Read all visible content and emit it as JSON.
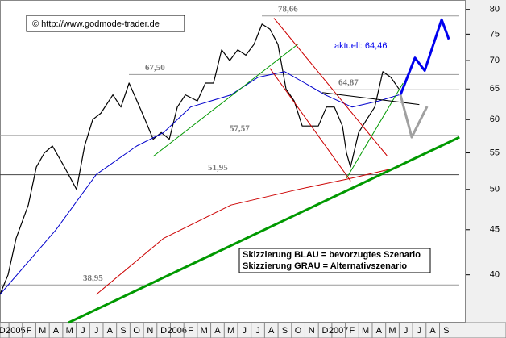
{
  "chart_data": {
    "type": "line",
    "log_scale": true,
    "source": "© http://www.godmode-trader.de",
    "annotation": "aktuell: 64,46",
    "notes": [
      "Skizzierung BLAU = bevorzugtes Szenario",
      "Skizzierung GRAU = Alternativszenario"
    ],
    "categories": [
      "D",
      "2005",
      "F",
      "M",
      "A",
      "M",
      "J",
      "J",
      "A",
      "S",
      "O",
      "N",
      "D",
      "2006",
      "F",
      "M",
      "A",
      "M",
      "J",
      "J",
      "A",
      "S",
      "O",
      "N",
      "D",
      "2007",
      "F",
      "M",
      "A",
      "M",
      "J",
      "J",
      "A",
      "S"
    ],
    "xlim": [
      -1.16,
      33.45
    ],
    "ylim": [
      35.3,
      82
    ],
    "yticks": [
      40,
      45,
      50,
      55,
      60,
      65,
      70,
      75,
      80
    ],
    "levels": [
      {
        "value": 78.66,
        "label": "78,66"
      },
      {
        "value": 67.5,
        "label": "67,50"
      },
      {
        "value": 64.87,
        "label": "64,87"
      },
      {
        "value": 57.57,
        "label": "57,57"
      },
      {
        "value": 51.95,
        "label": "51,95"
      },
      {
        "value": 38.95,
        "label": "38,95"
      }
    ],
    "series": [
      {
        "color": "#000000",
        "width": 1.2,
        "x": [
          -1.16,
          -0.56,
          0.04,
          0.94,
          1.54,
          2.14,
          2.74,
          3.63,
          4.53,
          5.13,
          5.73,
          6.33,
          7.23,
          7.83,
          8.43,
          9.02,
          9.62,
          10.22,
          10.82,
          11.42,
          12.02,
          12.62,
          13.51,
          14.11,
          14.71,
          15.31,
          15.91,
          16.51,
          17.11,
          17.71,
          18.31,
          18.9,
          19.5,
          20.1,
          20.7,
          21.3,
          21.9,
          22.5,
          23.1,
          23.69,
          24.29,
          24.59,
          24.89,
          25.49,
          26.09,
          26.69,
          27.29,
          27.89,
          28.49
        ],
        "values": [
          38,
          40,
          44,
          48,
          53,
          55,
          56,
          53,
          50,
          56,
          60,
          61,
          64,
          62,
          66,
          63,
          60,
          57,
          58,
          57,
          62,
          64,
          63,
          66,
          66,
          72,
          70,
          72,
          71,
          73,
          77,
          76,
          73,
          65,
          63,
          59,
          59,
          59,
          62,
          62,
          59,
          55,
          53,
          58,
          60,
          62,
          68,
          67,
          65
        ]
      },
      {
        "color": "#0000cc",
        "width": 1,
        "x": [
          -1.16,
          3,
          6,
          9,
          11,
          13,
          16,
          18,
          20,
          21.5,
          23,
          25,
          27,
          28.5
        ],
        "values": [
          38,
          45,
          52,
          56,
          58,
          62,
          64,
          67,
          68,
          66,
          64,
          62,
          63,
          64
        ]
      },
      {
        "color": "#cc0000",
        "width": 1,
        "x": [
          6,
          11,
          16,
          21,
          25,
          28.5
        ],
        "values": [
          38,
          44,
          48,
          50,
          51.5,
          53
        ]
      },
      {
        "color": "#009900",
        "width": 3,
        "x": [
          3.93,
          32.98
        ],
        "values": [
          35.3,
          57.3
        ]
      },
      {
        "color": "#009900",
        "width": 1,
        "x": [
          10.22,
          21
        ],
        "values": [
          54.5,
          73.1
        ]
      },
      {
        "color": "#009900",
        "width": 1,
        "x": [
          24.6,
          28.8
        ],
        "values": [
          51.5,
          66
        ]
      },
      {
        "color": "#cc0000",
        "width": 1,
        "x": [
          19.2,
          27.6
        ],
        "values": [
          78.2,
          54.6
        ]
      },
      {
        "color": "#cc0000",
        "width": 1,
        "x": [
          18.9,
          24.9
        ],
        "values": [
          68.6,
          51.1
        ]
      },
      {
        "color": "#000000",
        "width": 1,
        "x": [
          22.8,
          30
        ],
        "values": [
          64.4,
          62.4
        ]
      },
      {
        "color": "#0000ee",
        "width": 3,
        "x": [
          28.6,
          29.68,
          30.4,
          31.66,
          32.2
        ],
        "values": [
          64,
          70.5,
          68.2,
          77.9,
          74
        ]
      },
      {
        "color": "#a0a0a0",
        "width": 3,
        "x": [
          28.6,
          29.44,
          30.58
        ],
        "values": [
          64,
          57.3,
          62.1
        ]
      }
    ]
  }
}
